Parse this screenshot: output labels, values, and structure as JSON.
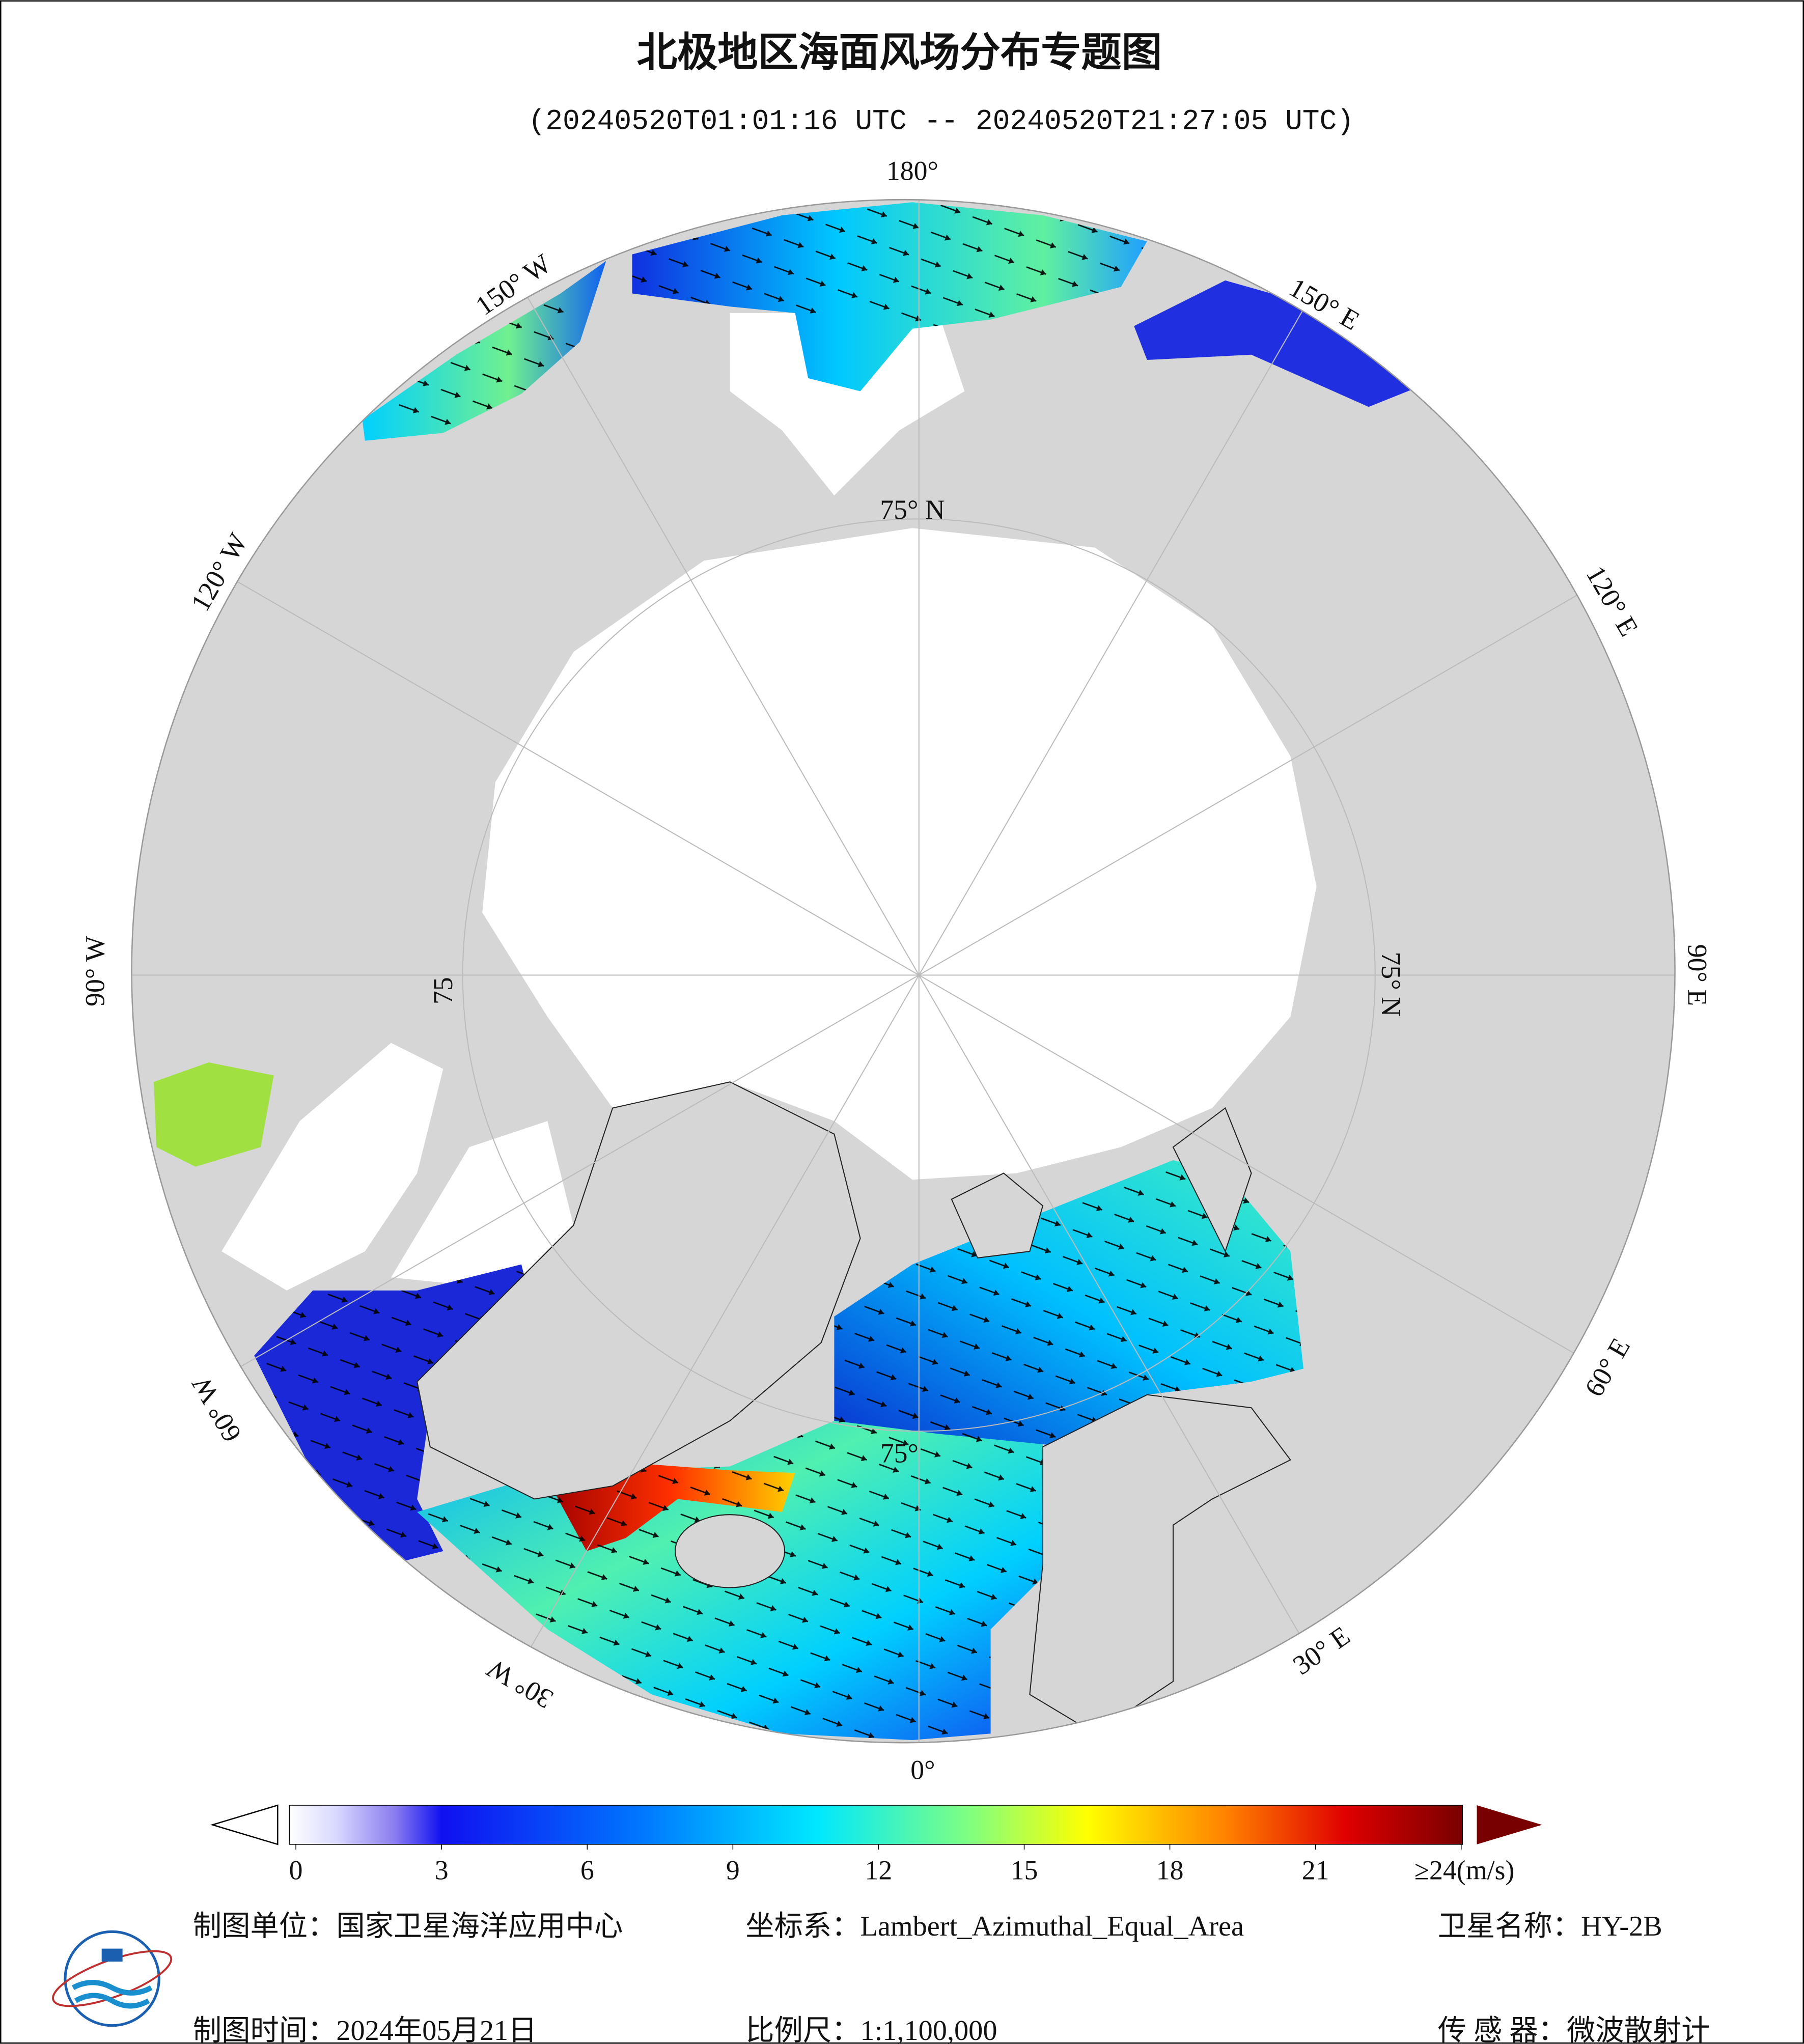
{
  "title": "北极地区海面风场分布专题图",
  "subtitle": "(20240520T01:01:16 UTC -- 20240520T21:27:05 UTC)",
  "map": {
    "longitude_labels": [
      "180°",
      "150° W",
      "120° W",
      "90° W",
      "60° W",
      "30° W",
      "0°",
      "30° E",
      "60° E",
      "90° E",
      "120° E",
      "150° E"
    ],
    "latitude_labels": [
      "75° N",
      "75° N",
      "75",
      "75°"
    ]
  },
  "colorbar": {
    "range": [
      0,
      24
    ],
    "ticks": [
      0,
      3,
      6,
      9,
      12,
      15,
      18,
      21,
      {
        "value": 24,
        "label": "≥24(m/s)"
      }
    ]
  },
  "footer": {
    "unit": "制图单位：国家卫星海洋应用中心",
    "projection": "坐标系：Lambert_Azimuthal_Equal_Area",
    "satellite": "卫星名称：HY-2B",
    "date": "制图时间：2024年05月21日",
    "scale": "比例尺：1:1,100,000",
    "sensor": "传 感 器：微波散射计"
  }
}
